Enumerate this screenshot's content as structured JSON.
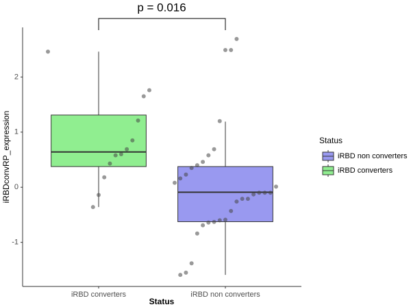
{
  "chart_data": {
    "type": "box",
    "annotation": "p = 0.016",
    "x_label": "Status",
    "y_label": "iRBDconvRP_expression",
    "legend_title": "Status",
    "legend": "right",
    "categories": [
      "iRBD converters",
      "iRBD non converters"
    ],
    "series": [
      {
        "name": "iRBD converters",
        "color": "#90ee90",
        "whisker_low": -0.36,
        "q1": 0.375,
        "median": 0.64,
        "q3": 1.31,
        "whisker_high": 2.46,
        "points": [
          2.46,
          1.76,
          1.65,
          1.21,
          0.85,
          0.69,
          0.6,
          0.58,
          0.43,
          0.18,
          -0.14,
          -0.36
        ]
      },
      {
        "name": "iRBD non converters",
        "color": "#9999f0",
        "whisker_low": -1.59,
        "q1": -0.625,
        "median": -0.09,
        "q3": 0.375,
        "whisker_high": 1.19,
        "points": [
          2.69,
          2.49,
          2.49,
          1.2,
          0.69,
          0.58,
          0.46,
          0.4,
          0.35,
          0.23,
          0.16,
          0.08,
          0.01,
          -0.1,
          -0.1,
          -0.1,
          -0.13,
          -0.21,
          -0.21,
          -0.26,
          -0.43,
          -0.59,
          -0.6,
          -0.63,
          -0.64,
          -0.69,
          -0.84,
          -1.38,
          -1.55,
          -1.59
        ]
      }
    ],
    "ylim": [
      -1.8,
      2.9
    ],
    "yticks": [
      -1,
      0,
      1,
      2
    ]
  }
}
